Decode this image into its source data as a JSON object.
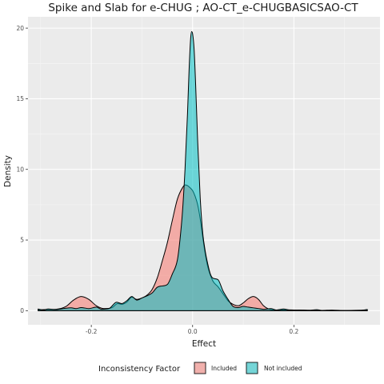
{
  "chart_data": {
    "type": "area",
    "title": "Spike and Slab for e-CHUG ; AO-CT_e-CHUGBASICSAO-CT",
    "xlabel": "Effect",
    "ylabel": "Density",
    "xlim": [
      -0.325,
      0.37
    ],
    "ylim": [
      -1.0,
      20.8
    ],
    "x_ticks": [
      -0.2,
      0.0,
      0.2
    ],
    "x_tick_labels": [
      "-0.2",
      "0.0",
      "0.2"
    ],
    "y_ticks": [
      0,
      5,
      10,
      15,
      20
    ],
    "y_tick_labels": [
      "0",
      "5",
      "10",
      "15",
      "20"
    ],
    "grid": true,
    "legend": {
      "title": "Inconsistency Factor",
      "position": "bottom"
    },
    "series": [
      {
        "name": "Included",
        "color": "#F8766D",
        "points": [
          [
            -0.305,
            0.05
          ],
          [
            -0.29,
            0.08
          ],
          [
            -0.27,
            0.1
          ],
          [
            -0.25,
            0.3
          ],
          [
            -0.235,
            0.75
          ],
          [
            -0.22,
            1.0
          ],
          [
            -0.205,
            0.8
          ],
          [
            -0.19,
            0.35
          ],
          [
            -0.175,
            0.15
          ],
          [
            -0.16,
            0.2
          ],
          [
            -0.148,
            0.5
          ],
          [
            -0.14,
            0.45
          ],
          [
            -0.13,
            0.6
          ],
          [
            -0.12,
            0.95
          ],
          [
            -0.11,
            0.8
          ],
          [
            -0.1,
            0.9
          ],
          [
            -0.09,
            1.1
          ],
          [
            -0.08,
            1.5
          ],
          [
            -0.07,
            2.3
          ],
          [
            -0.06,
            3.5
          ],
          [
            -0.05,
            4.8
          ],
          [
            -0.04,
            6.4
          ],
          [
            -0.03,
            7.9
          ],
          [
            -0.02,
            8.7
          ],
          [
            -0.015,
            8.9
          ],
          [
            -0.01,
            8.85
          ],
          [
            -0.005,
            8.7
          ],
          [
            0.0,
            8.5
          ],
          [
            0.005,
            8.1
          ],
          [
            0.01,
            7.5
          ],
          [
            0.015,
            6.5
          ],
          [
            0.02,
            5.2
          ],
          [
            0.025,
            4.0
          ],
          [
            0.03,
            3.1
          ],
          [
            0.04,
            2.1
          ],
          [
            0.05,
            1.7
          ],
          [
            0.06,
            1.2
          ],
          [
            0.07,
            0.7
          ],
          [
            0.08,
            0.45
          ],
          [
            0.09,
            0.35
          ],
          [
            0.1,
            0.55
          ],
          [
            0.11,
            0.85
          ],
          [
            0.12,
            1.0
          ],
          [
            0.13,
            0.8
          ],
          [
            0.14,
            0.35
          ],
          [
            0.15,
            0.12
          ],
          [
            0.16,
            0.05
          ],
          [
            0.18,
            0.06
          ],
          [
            0.2,
            0.05
          ],
          [
            0.22,
            0.03
          ],
          [
            0.26,
            0.02
          ],
          [
            0.3,
            0.01
          ],
          [
            0.345,
            0.05
          ]
        ]
      },
      {
        "name": "Not included",
        "color": "#00BFC4",
        "points": [
          [
            -0.305,
            0.12
          ],
          [
            -0.295,
            0.05
          ],
          [
            -0.285,
            0.12
          ],
          [
            -0.27,
            0.08
          ],
          [
            -0.255,
            0.15
          ],
          [
            -0.24,
            0.2
          ],
          [
            -0.23,
            0.15
          ],
          [
            -0.22,
            0.22
          ],
          [
            -0.205,
            0.15
          ],
          [
            -0.19,
            0.25
          ],
          [
            -0.18,
            0.1
          ],
          [
            -0.165,
            0.15
          ],
          [
            -0.15,
            0.6
          ],
          [
            -0.14,
            0.5
          ],
          [
            -0.13,
            0.7
          ],
          [
            -0.12,
            1.0
          ],
          [
            -0.11,
            0.75
          ],
          [
            -0.1,
            0.9
          ],
          [
            -0.09,
            1.05
          ],
          [
            -0.08,
            1.25
          ],
          [
            -0.07,
            1.65
          ],
          [
            -0.06,
            1.75
          ],
          [
            -0.05,
            1.85
          ],
          [
            -0.04,
            2.6
          ],
          [
            -0.03,
            3.6
          ],
          [
            -0.025,
            5.0
          ],
          [
            -0.02,
            7.0
          ],
          [
            -0.015,
            10.0
          ],
          [
            -0.01,
            14.0
          ],
          [
            -0.007,
            17.0
          ],
          [
            -0.004,
            19.2
          ],
          [
            -0.002,
            19.75
          ],
          [
            0.0,
            19.6
          ],
          [
            0.003,
            18.5
          ],
          [
            0.006,
            16.0
          ],
          [
            0.01,
            12.0
          ],
          [
            0.015,
            8.0
          ],
          [
            0.02,
            5.5
          ],
          [
            0.025,
            4.2
          ],
          [
            0.03,
            3.3
          ],
          [
            0.035,
            2.6
          ],
          [
            0.04,
            2.3
          ],
          [
            0.05,
            2.2
          ],
          [
            0.06,
            1.4
          ],
          [
            0.07,
            0.8
          ],
          [
            0.08,
            0.3
          ],
          [
            0.09,
            0.22
          ],
          [
            0.1,
            0.3
          ],
          [
            0.11,
            0.25
          ],
          [
            0.12,
            0.2
          ],
          [
            0.13,
            0.15
          ],
          [
            0.14,
            0.1
          ],
          [
            0.155,
            0.15
          ],
          [
            0.165,
            0.05
          ],
          [
            0.18,
            0.12
          ],
          [
            0.195,
            0.02
          ],
          [
            0.21,
            0.05
          ],
          [
            0.23,
            0.03
          ],
          [
            0.245,
            0.07
          ],
          [
            0.255,
            0.02
          ],
          [
            0.275,
            0.04
          ],
          [
            0.3,
            0.01
          ],
          [
            0.33,
            0.02
          ],
          [
            0.345,
            0.08
          ]
        ]
      }
    ]
  }
}
